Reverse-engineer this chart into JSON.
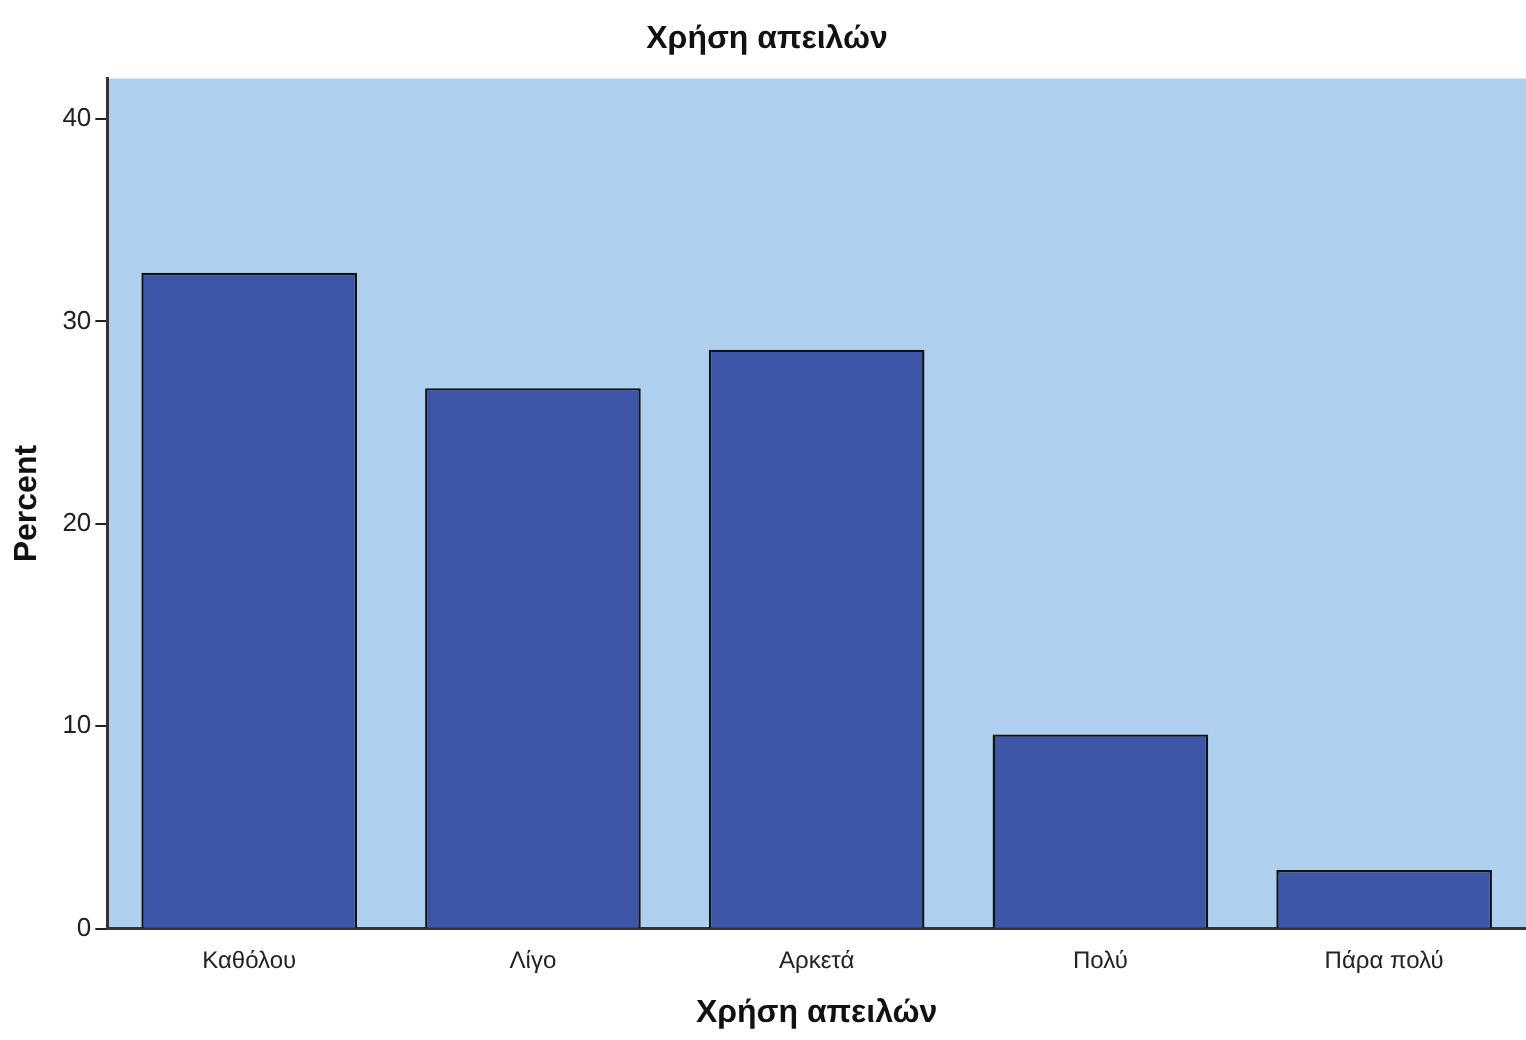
{
  "chart_data": {
    "type": "bar",
    "title": "Χρήση απειλών",
    "xlabel": "Χρήση απειλών",
    "ylabel": "Percent",
    "categories": [
      "Καθόλου",
      "Λίγο",
      "Αρκετά",
      "Πολύ",
      "Πάρα πολύ"
    ],
    "values": [
      32.4,
      26.7,
      28.6,
      9.6,
      2.9
    ],
    "color": "#3d56a8",
    "ylim": [
      0,
      42
    ],
    "yticks": [
      0,
      10,
      20,
      30,
      40
    ],
    "grid": false,
    "legend": false
  }
}
